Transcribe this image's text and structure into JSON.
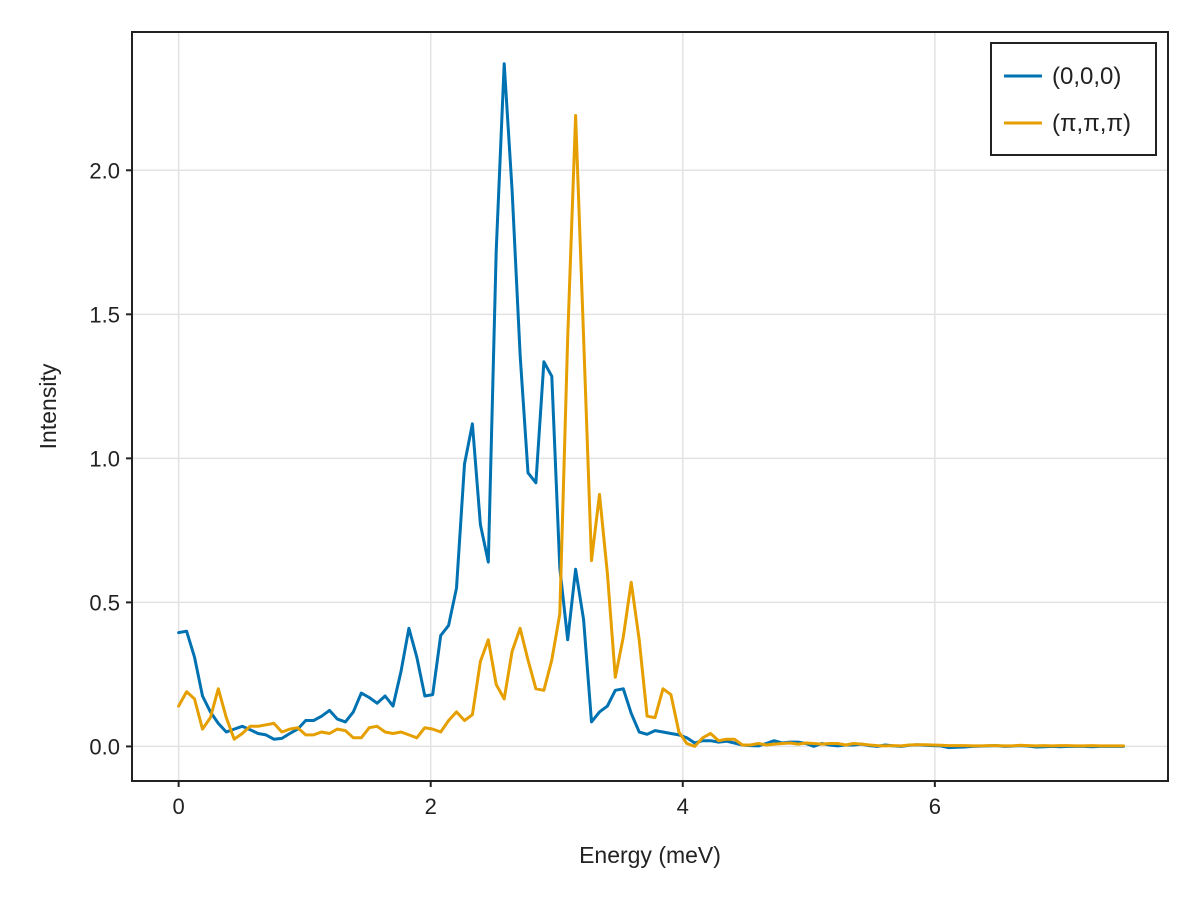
{
  "chart_data": {
    "type": "line",
    "title": "",
    "xlabel": "Energy (meV)",
    "ylabel": "Intensity",
    "xlim": [
      -0.37,
      7.85
    ],
    "ylim": [
      -0.12,
      2.48
    ],
    "xticks": [
      0,
      2,
      4,
      6
    ],
    "xtick_labels": [
      "0",
      "2",
      "4",
      "6"
    ],
    "yticks": [
      0.0,
      0.5,
      1.0,
      1.5,
      2.0
    ],
    "ytick_labels": [
      "0.0",
      "0.5",
      "1.0",
      "1.5",
      "2.0"
    ],
    "grid": true,
    "legend": "top-right",
    "x": [
      0.0,
      0.063,
      0.126,
      0.189,
      0.252,
      0.315,
      0.378,
      0.441,
      0.504,
      0.567,
      0.63,
      0.693,
      0.756,
      0.819,
      0.882,
      0.945,
      1.008,
      1.071,
      1.134,
      1.197,
      1.26,
      1.323,
      1.386,
      1.449,
      1.512,
      1.575,
      1.638,
      1.701,
      1.764,
      1.827,
      1.89,
      1.953,
      2.016,
      2.079,
      2.142,
      2.205,
      2.268,
      2.331,
      2.394,
      2.457,
      2.52,
      2.583,
      2.646,
      2.709,
      2.772,
      2.835,
      2.898,
      2.961,
      3.024,
      3.087,
      3.15,
      3.213,
      3.276,
      3.339,
      3.402,
      3.465,
      3.528,
      3.591,
      3.654,
      3.717,
      3.78,
      3.843,
      3.906,
      3.969,
      4.032,
      4.095,
      4.158,
      4.221,
      4.284,
      4.347,
      4.41,
      4.473,
      4.536,
      4.599,
      4.662,
      4.725,
      4.788,
      4.851,
      4.914,
      4.977,
      5.04,
      5.103,
      5.166,
      5.229,
      5.292,
      5.355,
      5.418,
      5.481,
      5.544,
      5.607,
      5.67,
      5.733,
      5.796,
      5.859,
      5.922,
      5.985,
      6.048,
      6.111,
      6.174,
      6.237,
      6.3,
      6.363,
      6.426,
      6.489,
      6.552,
      6.615,
      6.678,
      6.741,
      6.804,
      6.867,
      6.93,
      6.993,
      7.056,
      7.119,
      7.182,
      7.245,
      7.308,
      7.371,
      7.434,
      7.497
    ],
    "series": [
      {
        "name": "(0,0,0)",
        "color": "#0072b2",
        "values": [
          0.395,
          0.4,
          0.31,
          0.175,
          0.12,
          0.08,
          0.05,
          0.06,
          0.07,
          0.058,
          0.045,
          0.04,
          0.025,
          0.028,
          0.045,
          0.06,
          0.09,
          0.09,
          0.105,
          0.125,
          0.095,
          0.085,
          0.12,
          0.185,
          0.17,
          0.15,
          0.175,
          0.14,
          0.26,
          0.41,
          0.31,
          0.175,
          0.18,
          0.385,
          0.42,
          0.55,
          0.98,
          1.12,
          0.77,
          0.64,
          1.72,
          2.37,
          1.93,
          1.36,
          0.95,
          0.915,
          1.335,
          1.285,
          0.62,
          0.37,
          0.615,
          0.44,
          0.085,
          0.12,
          0.14,
          0.195,
          0.2,
          0.115,
          0.05,
          0.042,
          0.055,
          0.05,
          0.045,
          0.04,
          0.03,
          0.012,
          0.02,
          0.02,
          0.015,
          0.018,
          0.012,
          0.005,
          0.003,
          0.002,
          0.01,
          0.02,
          0.012,
          0.015,
          0.015,
          0.01,
          0.0,
          0.01,
          0.005,
          0.002,
          0.005,
          0.005,
          0.008,
          0.003,
          0.0,
          0.005,
          0.002,
          0.0,
          0.004,
          0.006,
          0.004,
          0.003,
          0.002,
          -0.004,
          -0.003,
          -0.002,
          0.0,
          0.001,
          0.002,
          0.003,
          0.0,
          0.001,
          0.003,
          0.001,
          -0.002,
          -0.001,
          0.0,
          -0.001,
          0.0,
          0.0,
          0.0,
          -0.001,
          0.0,
          0.0,
          0.0,
          0.0
        ]
      },
      {
        "name": "(π,π,π)",
        "color": "#e69f00",
        "values": [
          0.14,
          0.19,
          0.165,
          0.06,
          0.1,
          0.2,
          0.1,
          0.025,
          0.045,
          0.07,
          0.07,
          0.075,
          0.08,
          0.05,
          0.06,
          0.065,
          0.04,
          0.04,
          0.05,
          0.045,
          0.06,
          0.055,
          0.03,
          0.03,
          0.065,
          0.07,
          0.05,
          0.045,
          0.05,
          0.04,
          0.03,
          0.065,
          0.06,
          0.05,
          0.09,
          0.12,
          0.09,
          0.11,
          0.295,
          0.37,
          0.215,
          0.165,
          0.33,
          0.41,
          0.3,
          0.2,
          0.195,
          0.3,
          0.46,
          1.42,
          2.19,
          1.42,
          0.645,
          0.875,
          0.6,
          0.24,
          0.38,
          0.57,
          0.37,
          0.105,
          0.1,
          0.2,
          0.18,
          0.05,
          0.01,
          0.0,
          0.03,
          0.045,
          0.02,
          0.025,
          0.025,
          0.005,
          0.005,
          0.01,
          0.005,
          0.008,
          0.01,
          0.012,
          0.008,
          0.012,
          0.01,
          0.008,
          0.01,
          0.01,
          0.005,
          0.01,
          0.008,
          0.005,
          0.003,
          0.002,
          0.003,
          0.002,
          0.005,
          0.006,
          0.006,
          0.005,
          0.004,
          0.003,
          0.003,
          0.003,
          0.002,
          0.002,
          0.003,
          0.003,
          0.002,
          0.002,
          0.004,
          0.003,
          0.002,
          0.003,
          0.002,
          0.003,
          0.003,
          0.002,
          0.002,
          0.003,
          0.002,
          0.002,
          0.002,
          0.002
        ]
      }
    ]
  }
}
